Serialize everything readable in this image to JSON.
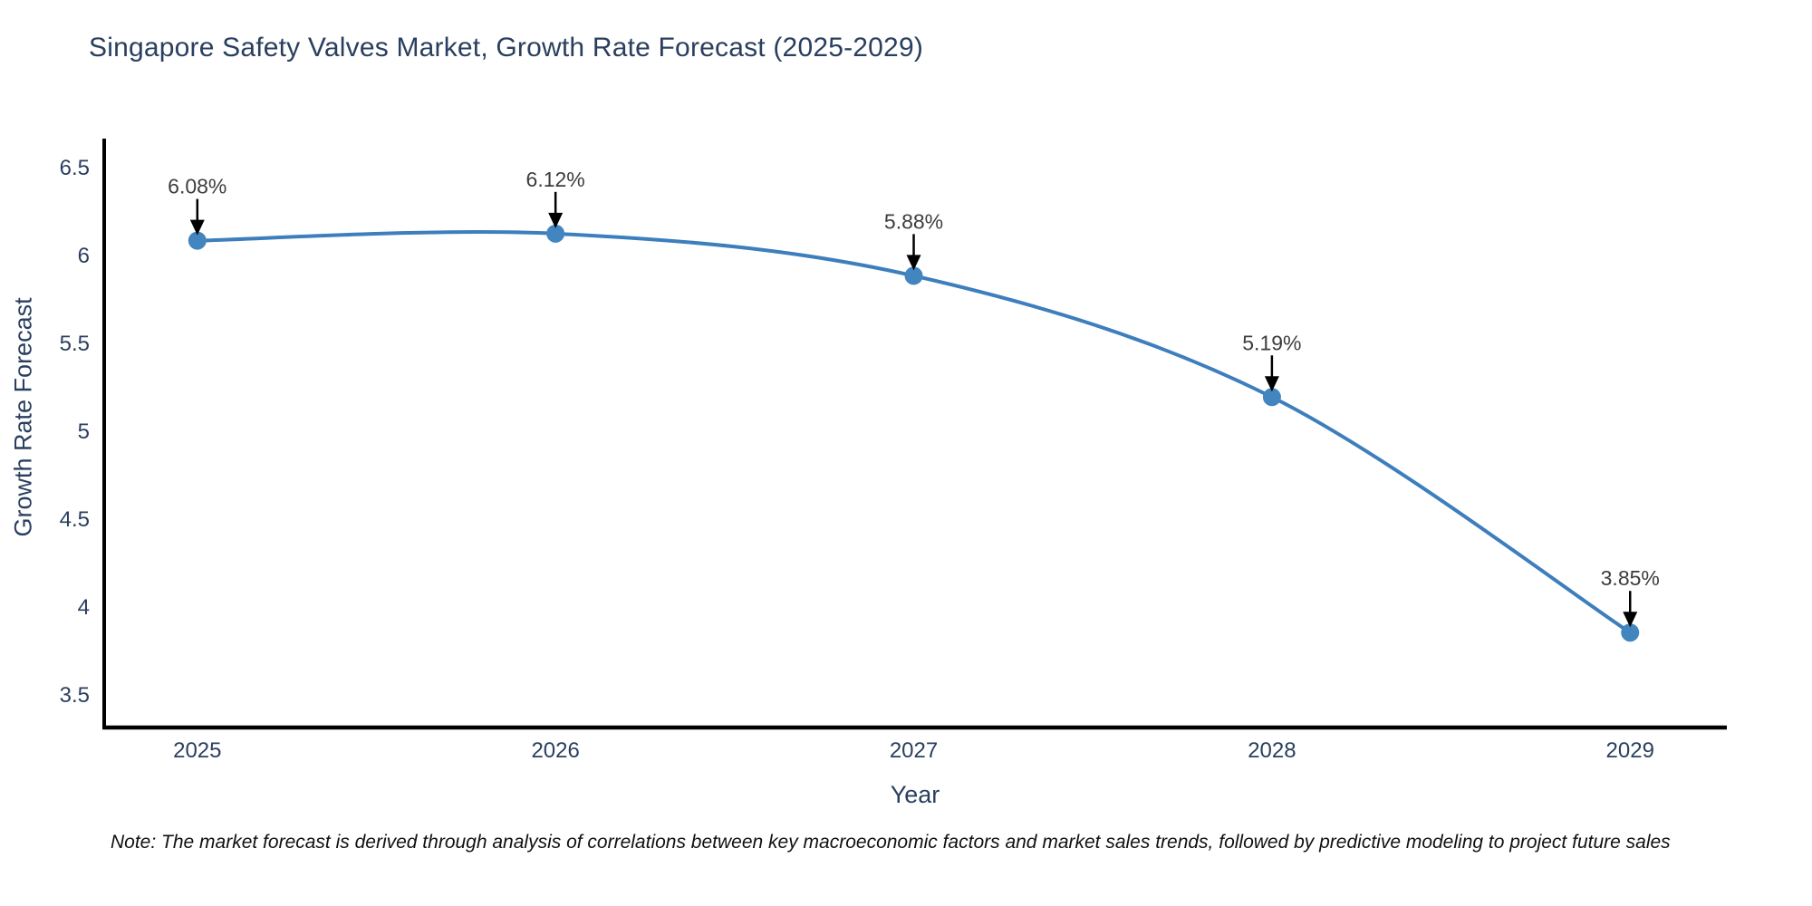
{
  "page": {
    "note": "Note: The market forecast is derived through analysis of correlations between key macroeconomic factors and market sales trends, followed by predictive modeling to project future sales"
  },
  "chart_data": {
    "type": "line",
    "title": "Singapore Safety Valves Market, Growth Rate Forecast (2025-2029)",
    "xlabel": "Year",
    "ylabel": "Growth Rate Forecast",
    "x": [
      2025,
      2026,
      2027,
      2028,
      2029
    ],
    "values": [
      6.08,
      6.12,
      5.88,
      5.19,
      3.85
    ],
    "point_labels": [
      "6.08%",
      "6.12%",
      "5.88%",
      "5.19%",
      "3.85%"
    ],
    "xtick_labels": [
      "2025",
      "2026",
      "2027",
      "2028",
      "2029"
    ],
    "ytick_values": [
      3.5,
      4,
      4.5,
      5,
      5.5,
      6,
      6.5
    ],
    "ytick_labels": [
      "3.5",
      "4",
      "4.5",
      "5",
      "5.5",
      "6",
      "6.5"
    ],
    "xlim": [
      2024.74,
      2029.27
    ],
    "ylim": [
      3.31,
      6.65
    ],
    "line_shape": "spline",
    "grid": false,
    "legend": "none",
    "annotations_have_arrows": true,
    "colors": {
      "line": "#3d7ebd",
      "marker": "#4285bf",
      "axis": "#000000",
      "arrow": "#000000",
      "title_text": "#2a3f5f",
      "tick_text": "#2a3f5f",
      "annotation_text": "#3d3d3d",
      "note_text": "#111111",
      "background": "#ffffff"
    }
  }
}
